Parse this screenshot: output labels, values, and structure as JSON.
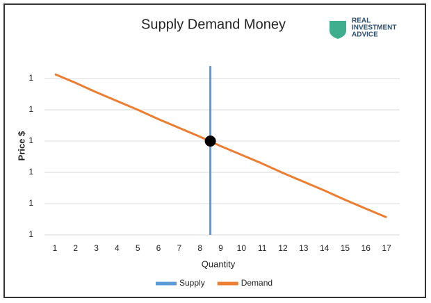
{
  "chart_data": {
    "type": "line",
    "title": "Supply Demand Money",
    "logo": [
      "REAL",
      "INVESTMENT",
      "ADVICE"
    ],
    "x_label": "Quantity",
    "y_label": "Price $",
    "xlim": [
      0.5,
      17.5
    ],
    "xticks": [
      1,
      2,
      3,
      4,
      5,
      6,
      7,
      8,
      9,
      10,
      11,
      12,
      13,
      14,
      15,
      16,
      17
    ],
    "ylim": [
      0.9,
      1.17
    ],
    "yticks": [
      {
        "value": 0.9,
        "label": "1"
      },
      {
        "value": 0.95,
        "label": "1"
      },
      1,
      {
        "value": 1.05,
        "label": "1"
      },
      {
        "value": 1.1,
        "label": "1"
      },
      {
        "value": 1.15,
        "label": "1"
      }
    ],
    "grid": true,
    "legend": "bottom",
    "series": [
      {
        "name": "Supply",
        "color": "#5b9bd5",
        "x": [
          8.5,
          8.5
        ],
        "values": [
          0.9,
          1.17
        ]
      },
      {
        "name": "Demand",
        "color": "#ed7d31",
        "x": [
          1,
          2,
          3,
          4,
          5,
          6,
          7,
          8,
          9,
          10,
          11,
          12,
          13,
          14,
          15,
          16,
          17
        ],
        "values": [
          1.157,
          1.143,
          1.128,
          1.114,
          1.1,
          1.085,
          1.071,
          1.057,
          1.042,
          1.028,
          1.014,
          0.999,
          0.985,
          0.971,
          0.956,
          0.942,
          0.928
        ]
      }
    ],
    "markers": [
      {
        "x": 8.5,
        "y": 1.05,
        "color": "#000000"
      }
    ]
  }
}
